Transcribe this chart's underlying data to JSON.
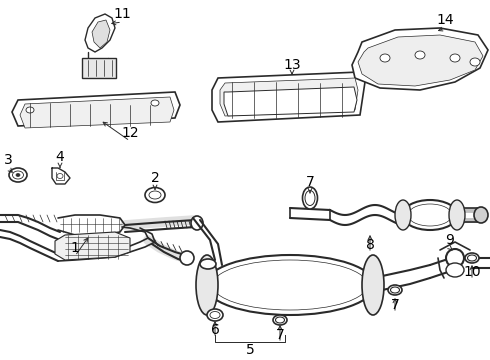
{
  "background_color": "#ffffff",
  "line_color": "#2a2a2a",
  "label_color": "#000000",
  "label_fontsize": 10,
  "fig_width": 4.9,
  "fig_height": 3.6,
  "dpi": 100
}
